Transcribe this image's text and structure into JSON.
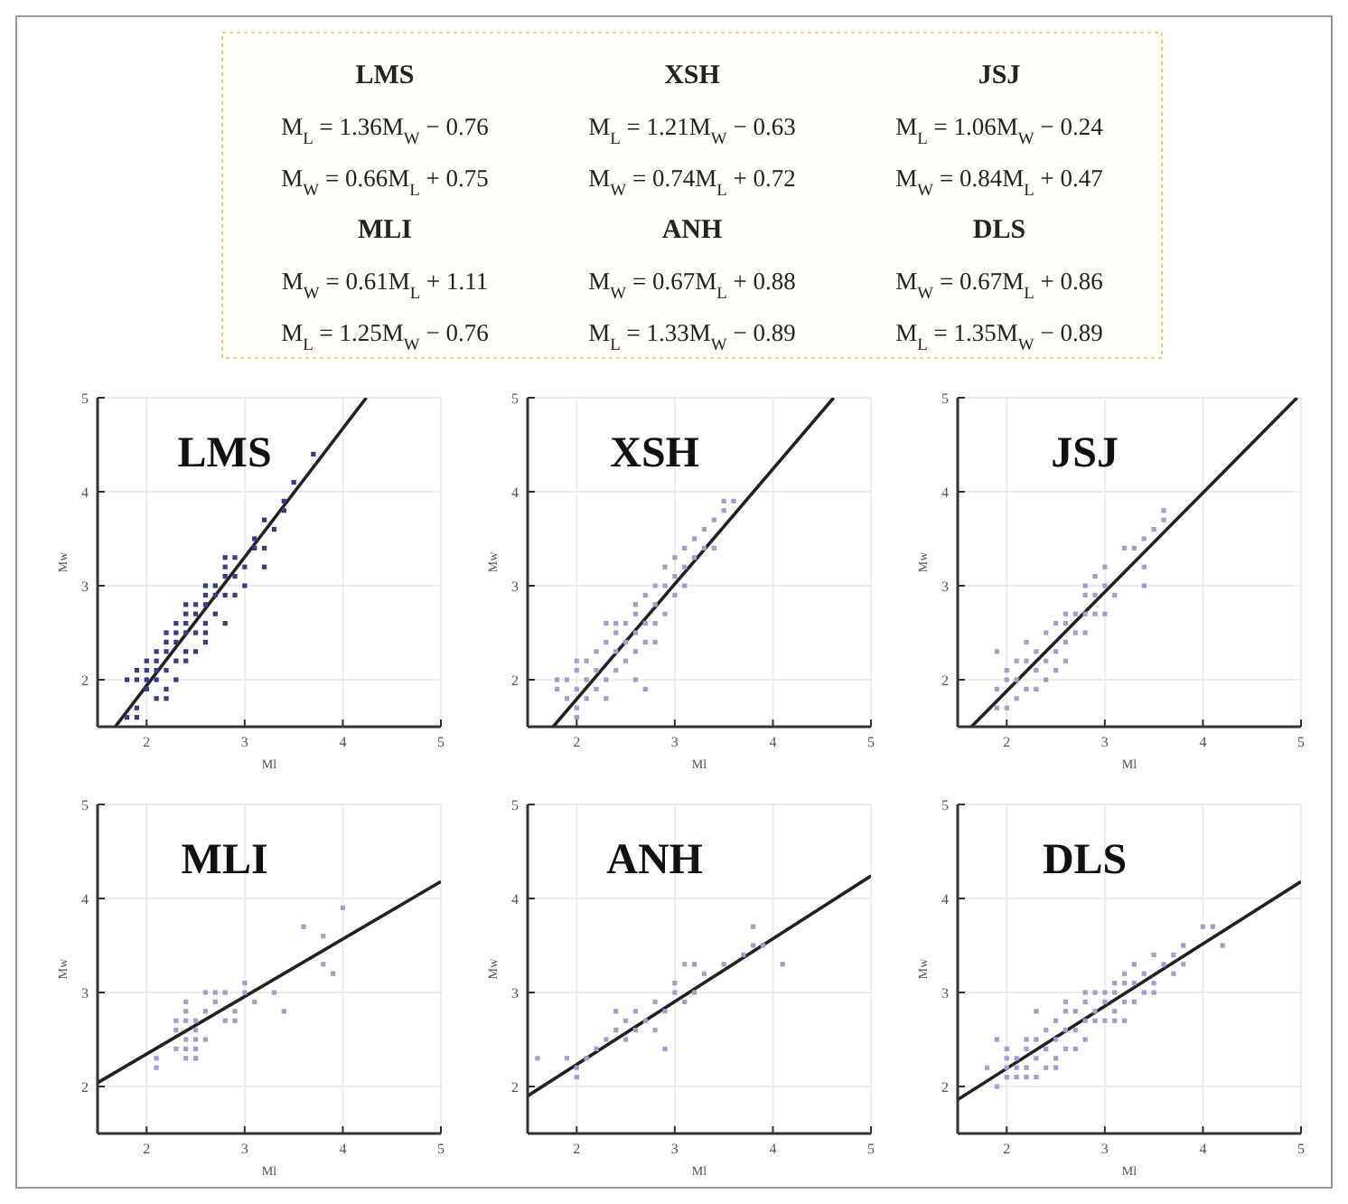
{
  "chart_data": [
    {
      "type": "other",
      "annotations": [
        "LMS",
        "XSH",
        "JSJ",
        "M$_{L}$ = 1.36M$_{W}$ − 0.76",
        "M$_{L}$ = 1.21M$_{W}$ − 0.63",
        "M$_{L}$ = 1.06M$_{W}$ − 0.24",
        "M$_{W}$ = 0.66M$_{L}$ + 0.75",
        "M$_{W}$ = 0.74M$_{L}$ + 0.72",
        "M$_{W}$ = 0.84M$_{L}$ + 0.47",
        "MLI",
        "ANH",
        "DLS",
        "M$_{W}$ = 0.61M$_{L}$ + 1.11",
        "M$_{W}$ = 0.67M$_{L}$ + 0.88",
        "M$_{W}$ = 0.67M$_{L}$ + 0.86",
        "M$_{L}$ = 1.25M$_{W}$ − 0.76",
        "M$_{L}$ = 1.33M$_{W}$ − 0.89",
        "M$_{L}$ = 1.35M$_{W}$ − 0.89"
      ]
    },
    {
      "type": "scatter",
      "title": "LMS",
      "xlabel": "Ml",
      "ylabel": "Mw",
      "xlim": [
        1.5,
        5
      ],
      "ylim": [
        1.5,
        5
      ],
      "xticks": [
        2,
        3,
        4,
        5
      ],
      "yticks": [
        2,
        3,
        4,
        5
      ],
      "grid": true,
      "series": [
        {
          "type": "scatter",
          "marker": "square",
          "color": "#3a3a8c",
          "x": [
            1.8,
            1.8,
            1.9,
            1.9,
            1.9,
            1.9,
            2.0,
            2.0,
            2.0,
            2.0,
            2.1,
            2.1,
            2.1,
            2.1,
            2.1,
            2.2,
            2.2,
            2.2,
            2.2,
            2.2,
            2.2,
            2.3,
            2.3,
            2.3,
            2.3,
            2.3,
            2.4,
            2.4,
            2.4,
            2.4,
            2.4,
            2.4,
            2.5,
            2.5,
            2.5,
            2.5,
            2.6,
            2.6,
            2.6,
            2.6,
            2.6,
            2.6,
            2.7,
            2.7,
            2.7,
            2.8,
            2.8,
            2.8,
            2.8,
            2.8,
            2.9,
            2.9,
            2.9,
            3.0,
            3.0,
            3.1,
            3.1,
            3.2,
            3.2,
            3.2,
            3.3,
            3.4,
            3.4,
            3.5,
            3.7
          ],
          "values": [
            2.0,
            1.6,
            1.6,
            1.7,
            2.0,
            2.1,
            1.9,
            2.0,
            2.1,
            2.2,
            1.8,
            2.0,
            2.1,
            2.2,
            2.3,
            1.8,
            1.9,
            2.1,
            2.3,
            2.4,
            2.5,
            2.0,
            2.2,
            2.4,
            2.5,
            2.6,
            2.2,
            2.3,
            2.5,
            2.6,
            2.7,
            2.8,
            2.3,
            2.5,
            2.7,
            2.8,
            2.4,
            2.5,
            2.6,
            2.8,
            2.9,
            3.0,
            2.7,
            2.9,
            3.0,
            2.6,
            2.9,
            3.1,
            3.2,
            3.3,
            2.9,
            3.1,
            3.3,
            3.0,
            3.2,
            3.4,
            3.5,
            3.2,
            3.4,
            3.7,
            3.6,
            3.8,
            3.9,
            4.1,
            4.4
          ]
        },
        {
          "type": "line",
          "color": "#222222",
          "x": [
            1.68,
            4.24
          ],
          "values": [
            1.5,
            5
          ]
        }
      ]
    },
    {
      "type": "scatter",
      "title": "XSH",
      "xlabel": "Ml",
      "ylabel": "Mw",
      "xlim": [
        1.5,
        5
      ],
      "ylim": [
        1.5,
        5
      ],
      "xticks": [
        2,
        3,
        4,
        5
      ],
      "yticks": [
        2,
        3,
        4,
        5
      ],
      "grid": true,
      "series": [
        {
          "type": "scatter",
          "marker": "square",
          "color": "#a0a0cc",
          "x": [
            1.8,
            1.8,
            1.9,
            1.9,
            2.0,
            2.0,
            2.0,
            2.0,
            2.0,
            2.1,
            2.1,
            2.1,
            2.2,
            2.2,
            2.2,
            2.3,
            2.3,
            2.3,
            2.3,
            2.4,
            2.4,
            2.4,
            2.4,
            2.5,
            2.5,
            2.5,
            2.6,
            2.6,
            2.6,
            2.6,
            2.6,
            2.7,
            2.7,
            2.7,
            2.7,
            2.8,
            2.8,
            2.8,
            2.8,
            2.9,
            2.9,
            2.9,
            3.0,
            3.0,
            3.0,
            3.1,
            3.1,
            3.1,
            3.2,
            3.2,
            3.3,
            3.3,
            3.4,
            3.4,
            3.5,
            3.5,
            3.6
          ],
          "values": [
            1.9,
            2.0,
            2.0,
            1.8,
            1.6,
            1.7,
            1.9,
            2.1,
            2.2,
            1.8,
            2.0,
            2.2,
            1.9,
            2.1,
            2.3,
            1.8,
            2.0,
            2.4,
            2.6,
            2.1,
            2.3,
            2.5,
            2.6,
            2.2,
            2.4,
            2.6,
            2.0,
            2.3,
            2.5,
            2.7,
            2.8,
            1.9,
            2.4,
            2.6,
            2.9,
            2.4,
            2.6,
            2.8,
            3.0,
            2.7,
            3.0,
            3.2,
            2.9,
            3.1,
            3.3,
            3.0,
            3.2,
            3.4,
            3.3,
            3.5,
            3.4,
            3.6,
            3.4,
            3.7,
            3.8,
            3.9,
            3.9
          ]
        },
        {
          "type": "line",
          "color": "#222222",
          "x": [
            1.76,
            4.62
          ],
          "values": [
            1.5,
            5
          ]
        }
      ]
    },
    {
      "type": "scatter",
      "title": "JSJ",
      "xlabel": "Ml",
      "ylabel": "Mw",
      "xlim": [
        1.5,
        5
      ],
      "ylim": [
        1.5,
        5
      ],
      "xticks": [
        2,
        3,
        4,
        5
      ],
      "yticks": [
        2,
        3,
        4,
        5
      ],
      "grid": true,
      "series": [
        {
          "type": "scatter",
          "marker": "square",
          "color": "#a0a0cc",
          "x": [
            1.9,
            1.9,
            1.9,
            2.0,
            2.0,
            2.0,
            2.1,
            2.1,
            2.1,
            2.2,
            2.2,
            2.2,
            2.3,
            2.3,
            2.3,
            2.4,
            2.4,
            2.4,
            2.5,
            2.5,
            2.5,
            2.6,
            2.6,
            2.6,
            2.6,
            2.7,
            2.7,
            2.8,
            2.8,
            2.8,
            2.8,
            2.9,
            2.9,
            2.9,
            3.0,
            3.0,
            3.0,
            3.1,
            3.2,
            3.3,
            3.4,
            3.4,
            3.4,
            3.5,
            3.6,
            3.6
          ],
          "values": [
            1.7,
            1.9,
            2.3,
            1.7,
            2.0,
            2.1,
            1.8,
            2.0,
            2.2,
            1.9,
            2.2,
            2.4,
            1.9,
            2.1,
            2.3,
            2.0,
            2.2,
            2.5,
            2.1,
            2.3,
            2.6,
            2.2,
            2.4,
            2.6,
            2.7,
            2.5,
            2.7,
            2.5,
            2.7,
            2.9,
            3.0,
            2.7,
            2.9,
            3.1,
            2.7,
            3.0,
            3.2,
            2.9,
            3.4,
            3.4,
            3.0,
            3.2,
            3.5,
            3.6,
            3.7,
            3.8
          ]
        },
        {
          "type": "line",
          "color": "#222222",
          "x": [
            1.64,
            4.96
          ],
          "values": [
            1.5,
            5
          ]
        }
      ]
    },
    {
      "type": "scatter",
      "title": "MLI",
      "xlabel": "Ml",
      "ylabel": "Mw",
      "xlim": [
        1.5,
        5
      ],
      "ylim": [
        1.5,
        5
      ],
      "xticks": [
        2,
        3,
        4,
        5
      ],
      "yticks": [
        2,
        3,
        4,
        5
      ],
      "grid": true,
      "series": [
        {
          "type": "scatter",
          "marker": "square",
          "color": "#a0a0cc",
          "x": [
            2.1,
            2.1,
            2.3,
            2.3,
            2.3,
            2.4,
            2.4,
            2.4,
            2.4,
            2.4,
            2.4,
            2.5,
            2.5,
            2.5,
            2.5,
            2.5,
            2.6,
            2.6,
            2.6,
            2.7,
            2.7,
            2.8,
            2.8,
            2.9,
            2.9,
            3.0,
            3.0,
            3.1,
            3.3,
            3.4,
            3.6,
            3.8,
            3.8,
            3.9,
            4.0
          ],
          "values": [
            2.2,
            2.3,
            2.4,
            2.6,
            2.7,
            2.3,
            2.4,
            2.5,
            2.7,
            2.8,
            2.9,
            2.3,
            2.4,
            2.5,
            2.6,
            2.7,
            2.5,
            2.8,
            3.0,
            2.9,
            3.0,
            2.7,
            3.0,
            2.7,
            2.8,
            3.0,
            3.1,
            2.9,
            3.0,
            2.8,
            3.7,
            3.3,
            3.6,
            3.2,
            3.9
          ]
        },
        {
          "type": "line",
          "color": "#222222",
          "x": [
            1.5,
            5
          ],
          "values": [
            2.04,
            4.18
          ]
        }
      ]
    },
    {
      "type": "scatter",
      "title": "ANH",
      "xlabel": "Ml",
      "ylabel": "Mw",
      "xlim": [
        1.5,
        5
      ],
      "ylim": [
        1.5,
        5
      ],
      "xticks": [
        2,
        3,
        4,
        5
      ],
      "yticks": [
        2,
        3,
        4,
        5
      ],
      "grid": true,
      "series": [
        {
          "type": "scatter",
          "marker": "square",
          "color": "#a0a0cc",
          "x": [
            1.6,
            1.9,
            2.0,
            2.0,
            2.1,
            2.2,
            2.3,
            2.4,
            2.4,
            2.5,
            2.5,
            2.6,
            2.6,
            2.7,
            2.8,
            2.8,
            2.9,
            2.9,
            3.0,
            3.0,
            3.1,
            3.1,
            3.2,
            3.2,
            3.3,
            3.5,
            3.7,
            3.8,
            3.8,
            3.9,
            4.1
          ],
          "values": [
            2.3,
            2.3,
            2.1,
            2.2,
            2.3,
            2.4,
            2.5,
            2.6,
            2.8,
            2.5,
            2.7,
            2.6,
            2.8,
            2.7,
            2.6,
            2.9,
            2.4,
            2.8,
            3.0,
            3.1,
            2.9,
            3.3,
            3.0,
            3.3,
            3.2,
            3.3,
            3.4,
            3.5,
            3.7,
            3.5,
            3.3
          ]
        },
        {
          "type": "line",
          "color": "#222222",
          "x": [
            1.5,
            5
          ],
          "values": [
            1.9,
            4.24
          ]
        }
      ]
    },
    {
      "type": "scatter",
      "title": "DLS",
      "xlabel": "Ml",
      "ylabel": "Mw",
      "xlim": [
        1.5,
        5
      ],
      "ylim": [
        1.5,
        5
      ],
      "xticks": [
        2,
        3,
        4,
        5
      ],
      "yticks": [
        2,
        3,
        4,
        5
      ],
      "grid": true,
      "series": [
        {
          "type": "scatter",
          "marker": "square",
          "color": "#a0a0cc",
          "x": [
            1.8,
            1.9,
            1.9,
            2.0,
            2.0,
            2.0,
            2.0,
            2.1,
            2.1,
            2.1,
            2.2,
            2.2,
            2.2,
            2.2,
            2.3,
            2.3,
            2.3,
            2.3,
            2.4,
            2.4,
            2.4,
            2.5,
            2.5,
            2.5,
            2.5,
            2.6,
            2.6,
            2.6,
            2.6,
            2.7,
            2.7,
            2.7,
            2.8,
            2.8,
            2.8,
            2.8,
            2.9,
            2.9,
            2.9,
            3.0,
            3.0,
            3.0,
            3.1,
            3.1,
            3.1,
            3.1,
            3.2,
            3.2,
            3.2,
            3.2,
            3.3,
            3.3,
            3.3,
            3.4,
            3.4,
            3.5,
            3.5,
            3.5,
            3.6,
            3.7,
            3.7,
            3.8,
            3.8,
            4.0,
            4.1,
            4.2
          ],
          "values": [
            2.2,
            2.0,
            2.5,
            2.1,
            2.2,
            2.3,
            2.4,
            2.1,
            2.2,
            2.3,
            2.1,
            2.2,
            2.4,
            2.5,
            2.1,
            2.3,
            2.5,
            2.8,
            2.2,
            2.4,
            2.6,
            2.2,
            2.3,
            2.5,
            2.7,
            2.4,
            2.6,
            2.8,
            2.9,
            2.4,
            2.6,
            2.8,
            2.5,
            2.7,
            2.9,
            3.0,
            2.7,
            2.8,
            3.0,
            2.7,
            2.9,
            3.0,
            2.7,
            2.8,
            3.0,
            3.1,
            2.7,
            2.9,
            3.1,
            3.2,
            2.9,
            3.1,
            3.3,
            3.0,
            3.2,
            3.0,
            3.1,
            3.4,
            3.3,
            3.2,
            3.4,
            3.3,
            3.5,
            3.7,
            3.7,
            3.5
          ]
        },
        {
          "type": "line",
          "color": "#222222",
          "x": [
            1.5,
            5
          ],
          "values": [
            1.86,
            4.18
          ]
        }
      ]
    }
  ]
}
